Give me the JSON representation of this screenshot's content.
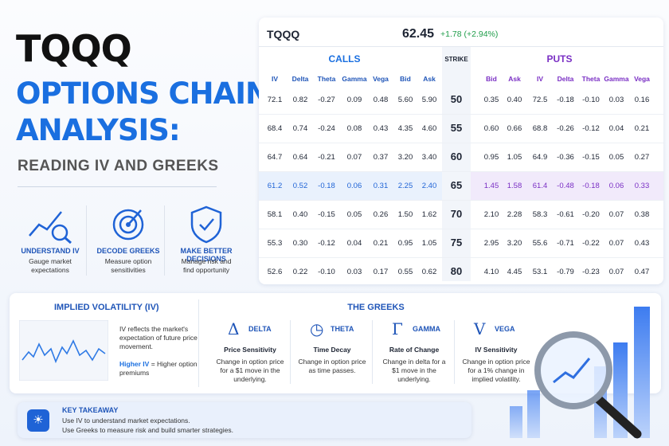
{
  "header": {
    "symbol": "TQQQ",
    "title_line1": "OPTIONS CHAIN",
    "title_line2": "ANALYSIS:",
    "subtitle": "READING IV AND GREEKS"
  },
  "features": [
    {
      "title": "UNDERSTAND IV",
      "text": "Gauge market expectations"
    },
    {
      "title": "DECODE GREEKS",
      "text": "Measure option sensitivities"
    },
    {
      "title": "MAKE BETTER DECISIONS",
      "text": "Manage risk and find opportunity"
    }
  ],
  "quote": {
    "symbol": "TQQQ",
    "price": "62.45",
    "change": "+1.78 (+2.94%)"
  },
  "chain": {
    "calls_label": "CALLS",
    "puts_label": "PUTS",
    "strike_label": "STRIKE",
    "call_columns": [
      "IV",
      "Delta",
      "Theta",
      "Gamma",
      "Vega",
      "Bid",
      "Ask"
    ],
    "put_columns": [
      "Bid",
      "Ask",
      "IV",
      "Delta",
      "Theta",
      "Gamma",
      "Vega"
    ],
    "rows": [
      {
        "calls": [
          "72.1",
          "0.82",
          "-0.27",
          "0.09",
          "0.48",
          "5.60",
          "5.90"
        ],
        "strike": "50",
        "puts": [
          "0.35",
          "0.40",
          "72.5",
          "-0.18",
          "-0.10",
          "0.03",
          "0.16"
        ]
      },
      {
        "calls": [
          "68.4",
          "0.74",
          "-0.24",
          "0.08",
          "0.43",
          "4.35",
          "4.60"
        ],
        "strike": "55",
        "puts": [
          "0.60",
          "0.66",
          "68.8",
          "-0.26",
          "-0.12",
          "0.04",
          "0.21"
        ]
      },
      {
        "calls": [
          "64.7",
          "0.64",
          "-0.21",
          "0.07",
          "0.37",
          "3.20",
          "3.40"
        ],
        "strike": "60",
        "puts": [
          "0.95",
          "1.05",
          "64.9",
          "-0.36",
          "-0.15",
          "0.05",
          "0.27"
        ]
      },
      {
        "calls": [
          "61.2",
          "0.52",
          "-0.18",
          "0.06",
          "0.31",
          "2.25",
          "2.40"
        ],
        "strike": "65",
        "puts": [
          "1.45",
          "1.58",
          "61.4",
          "-0.48",
          "-0.18",
          "0.06",
          "0.33"
        ],
        "highlight": true
      },
      {
        "calls": [
          "58.1",
          "0.40",
          "-0.15",
          "0.05",
          "0.26",
          "1.50",
          "1.62"
        ],
        "strike": "70",
        "puts": [
          "2.10",
          "2.28",
          "58.3",
          "-0.61",
          "-0.20",
          "0.07",
          "0.38"
        ]
      },
      {
        "calls": [
          "55.3",
          "0.30",
          "-0.12",
          "0.04",
          "0.21",
          "0.95",
          "1.05"
        ],
        "strike": "75",
        "puts": [
          "2.95",
          "3.20",
          "55.6",
          "-0.71",
          "-0.22",
          "0.07",
          "0.43"
        ]
      },
      {
        "calls": [
          "52.6",
          "0.22",
          "-0.10",
          "0.03",
          "0.17",
          "0.55",
          "0.62"
        ],
        "strike": "80",
        "puts": [
          "4.10",
          "4.45",
          "53.1",
          "-0.79",
          "-0.23",
          "0.07",
          "0.47"
        ]
      }
    ]
  },
  "iv_panel": {
    "title": "IMPLIED VOLATILITY (IV)",
    "text": "IV reflects the market's expectation of future price movement.",
    "highlight": "Higher IV",
    "highlight_text": "= Higher option premiums"
  },
  "greeks": {
    "title": "THE GREEKS",
    "items": [
      {
        "symbol": "Δ",
        "name": "DELTA",
        "subtitle": "Price Sensitivity",
        "text": "Change in option price for a $1 move in the underlying."
      },
      {
        "symbol": "◷",
        "name": "THETA",
        "subtitle": "Time Decay",
        "text": "Change in option price as time passes."
      },
      {
        "symbol": "Γ",
        "name": "GAMMA",
        "subtitle": "Rate of Change",
        "text": "Change in delta for a $1 move in the underlying."
      },
      {
        "symbol": "V",
        "name": "VEGA",
        "subtitle": "IV Sensitivity",
        "text": "Change in option price for a 1% change in implied volatility."
      }
    ]
  },
  "takeaway": {
    "title": "KEY TAKEAWAY",
    "line1": "Use IV to understand market expectations.",
    "line2": "Use Greeks to measure risk and build smarter strategies."
  }
}
